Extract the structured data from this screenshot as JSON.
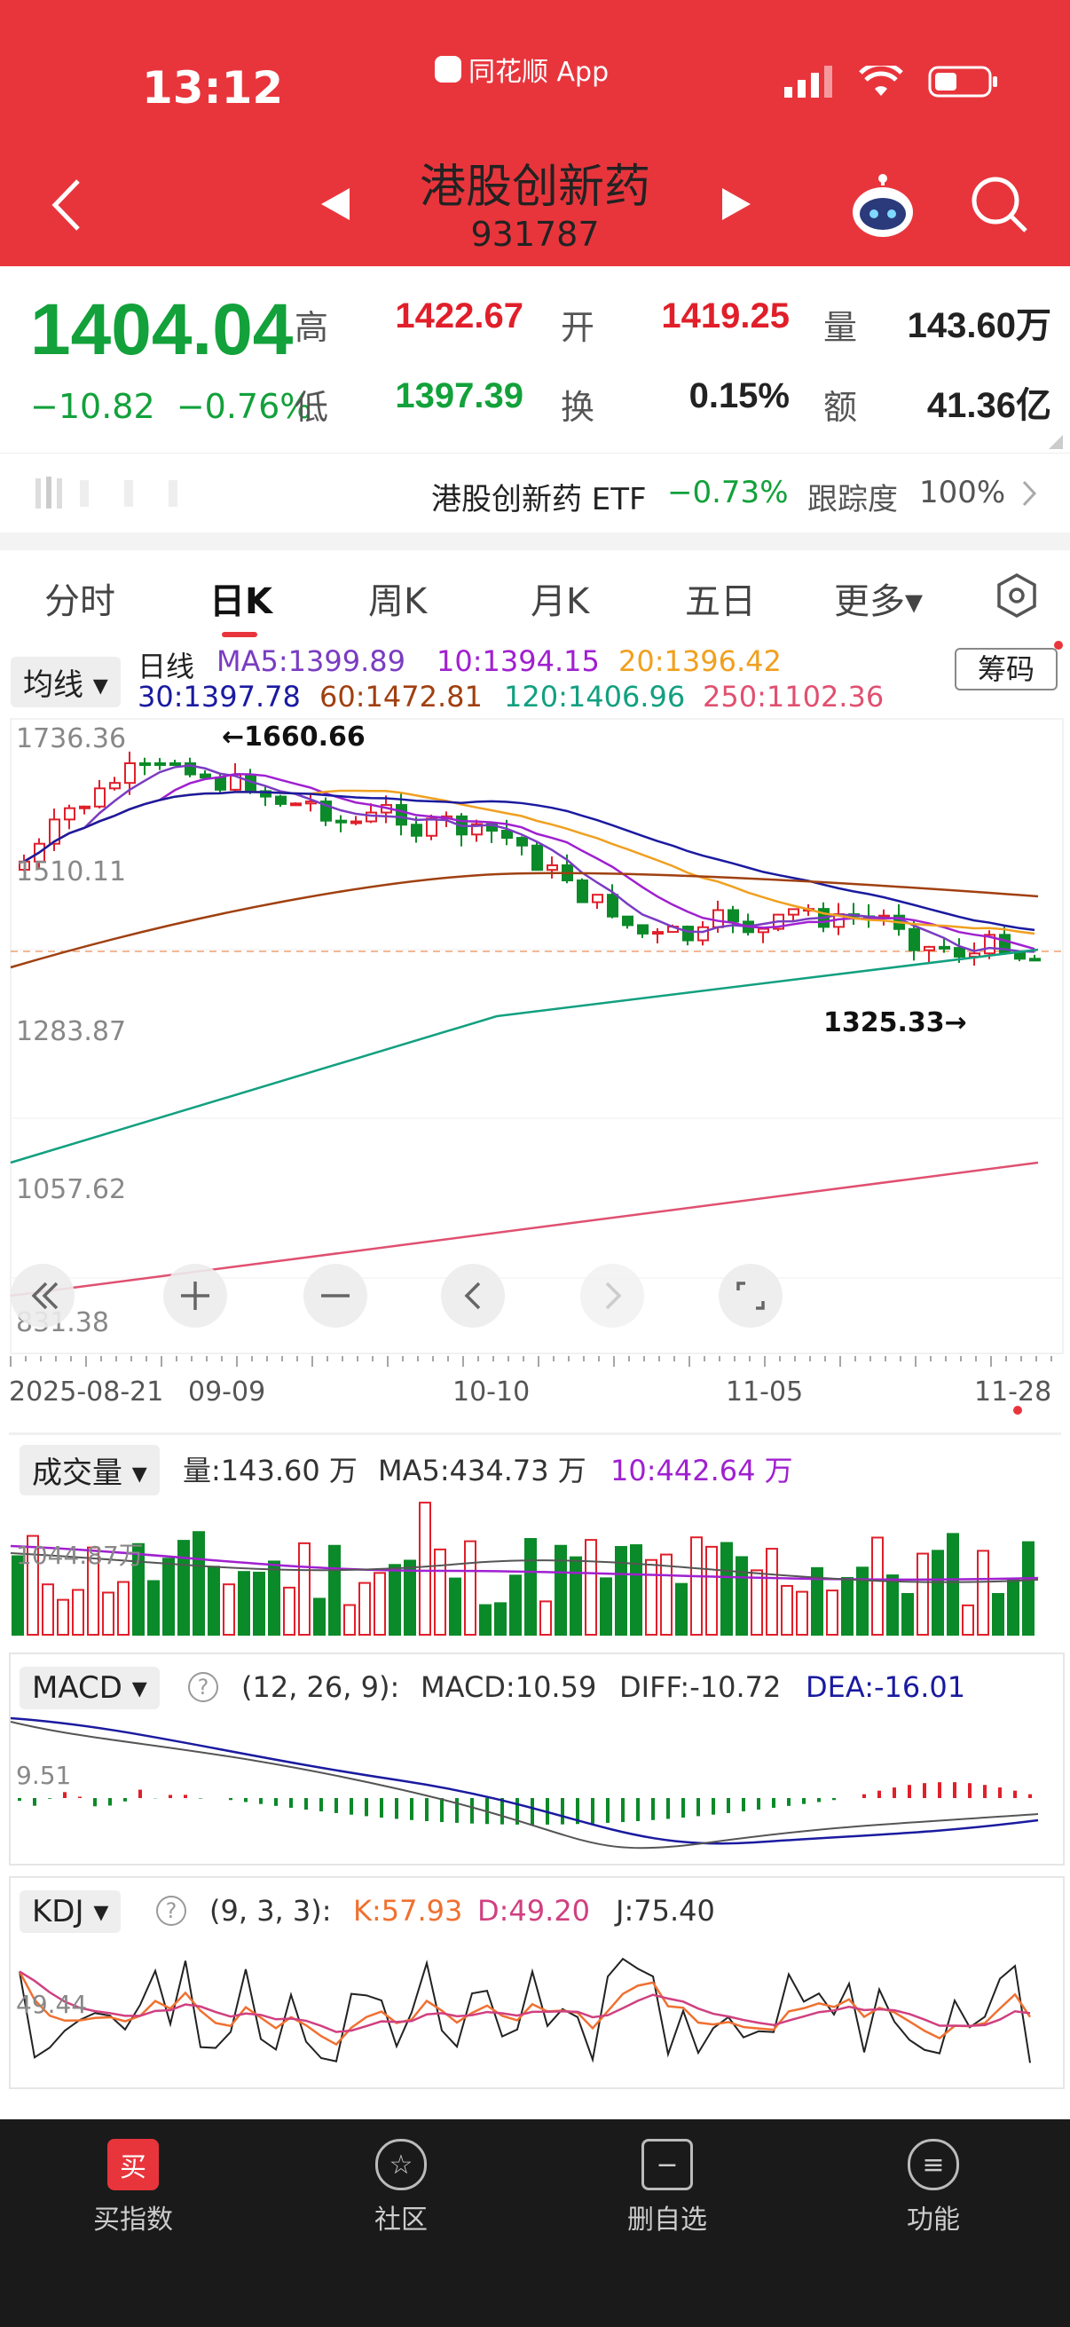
{
  "status": {
    "time": "13:12",
    "app": "同花顺 App"
  },
  "header": {
    "title": "港股创新药",
    "code": "931787"
  },
  "quote": {
    "price": "1404.04",
    "change": "−10.82",
    "change_pct": "−0.76%",
    "high_label": "高",
    "high": "1422.67",
    "open_label": "开",
    "open": "1419.25",
    "volume_label": "量",
    "volume": "143.60万",
    "low_label": "低",
    "low": "1397.39",
    "turnover_label": "换",
    "turnover": "0.15%",
    "amount_label": "额",
    "amount": "41.36亿"
  },
  "etf": {
    "name": "港股创新药 ETF",
    "change": "−0.73%",
    "track_label": "跟踪度",
    "track": "100%"
  },
  "tabs": [
    "分时",
    "日K",
    "周K",
    "月K",
    "五日",
    "更多▾"
  ],
  "kline": {
    "indicator": "均线",
    "period": "日线",
    "chips_button": "筹码",
    "ma": [
      {
        "label": "MA5:1399.89",
        "color": "#7a3cc2"
      },
      {
        "label": "10:1394.15",
        "color": "#a020d0"
      },
      {
        "label": "20:1396.42",
        "color": "#f0a020"
      },
      {
        "label": "30:1397.78",
        "color": "#1a1aa0"
      },
      {
        "label": "60:1472.81",
        "color": "#a04010"
      },
      {
        "label": "120:1406.96",
        "color": "#12a080"
      },
      {
        "label": "250:1102.36",
        "color": "#e05070"
      }
    ],
    "y_labels": [
      "1736.36",
      "1510.11",
      "1283.87",
      "1057.62",
      "831.38"
    ],
    "max_marker": "←1660.66",
    "min_marker": "1325.33→",
    "dates": [
      "2025-08-21",
      "09-09",
      "10-10",
      "11-05",
      "11-28"
    ]
  },
  "volume": {
    "indicator": "成交量",
    "vol": "量:143.60 万",
    "ma5": "MA5:434.73 万",
    "ma10": "10:442.64 万",
    "axis": "1044.87万"
  },
  "macd": {
    "indicator": "MACD",
    "params": "(12, 26, 9):",
    "macd": "MACD:10.59",
    "diff": "DIFF:-10.72",
    "dea": "DEA:-16.01",
    "axis": "9.51"
  },
  "kdj": {
    "indicator": "KDJ",
    "params": "(9, 3, 3):",
    "k": "K:57.93",
    "d": "D:49.20",
    "j": "J:75.40",
    "axis": "49.44"
  },
  "nav": [
    {
      "label": "买指数",
      "icon": "买"
    },
    {
      "label": "社区",
      "icon": "☆"
    },
    {
      "label": "删自选",
      "icon": "−"
    },
    {
      "label": "功能",
      "icon": "≡"
    }
  ]
}
